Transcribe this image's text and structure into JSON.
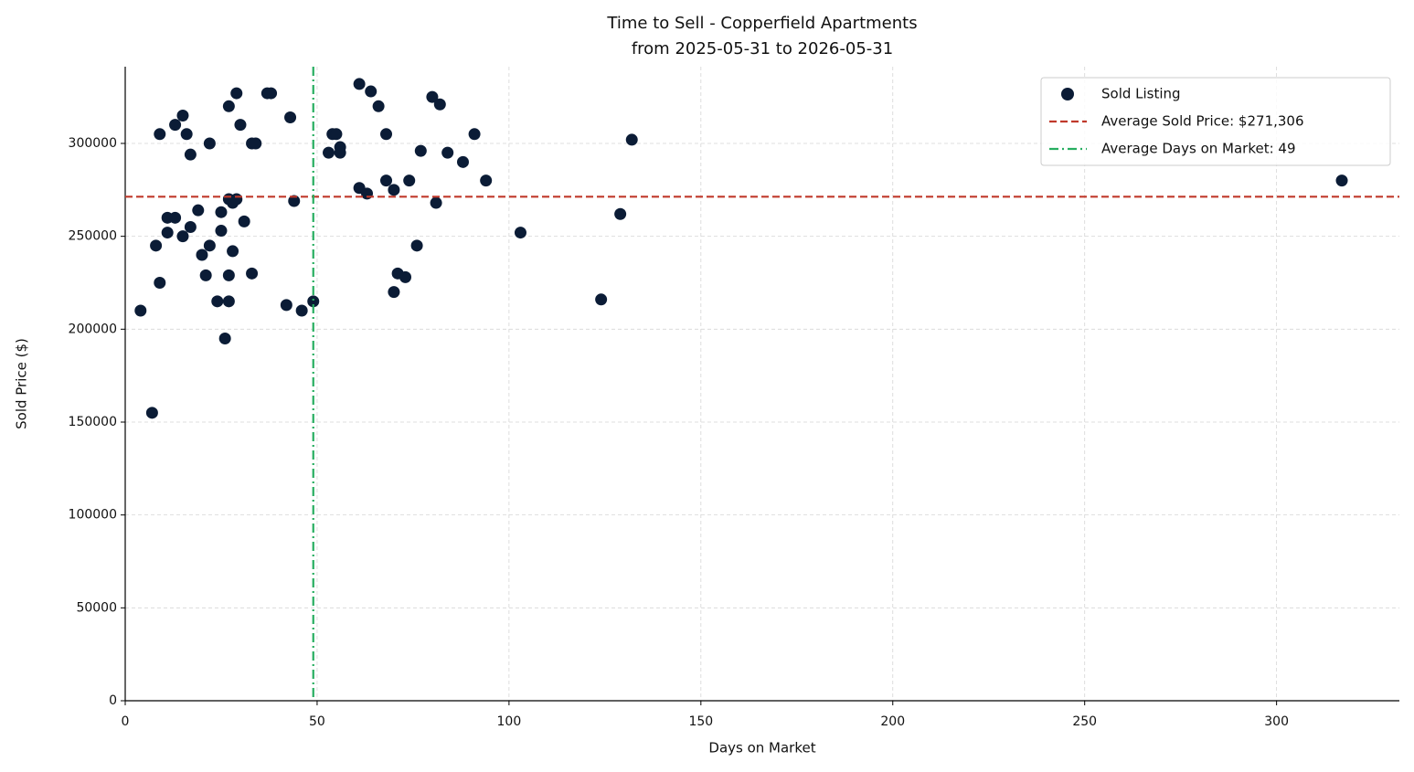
{
  "chart_data": {
    "type": "scatter",
    "title": "Time to Sell - Copperfield Apartments",
    "subtitle": "from 2025-05-31 to 2026-05-31",
    "x_label": "Days on Market",
    "y_label": "Sold Price ($)",
    "series": [
      {
        "name": "Sold Listing",
        "color": "#0b1c36",
        "x": [
          4,
          7,
          8,
          9,
          9,
          11,
          11,
          13,
          13,
          15,
          15,
          16,
          17,
          17,
          19,
          20,
          21,
          22,
          22,
          24,
          25,
          25,
          26,
          27,
          27,
          27,
          27,
          28,
          28,
          29,
          29,
          30,
          31,
          33,
          33,
          34,
          37,
          38,
          42,
          43,
          44,
          46,
          49,
          53,
          54,
          55,
          56,
          56,
          61,
          61,
          63,
          64,
          66,
          68,
          68,
          70,
          70,
          71,
          73,
          74,
          76,
          77,
          80,
          81,
          82,
          84,
          88,
          91,
          94,
          103,
          124,
          129,
          132,
          317
        ],
        "values": [
          210000,
          155000,
          245000,
          225000,
          305000,
          260000,
          252000,
          310000,
          260000,
          315000,
          250000,
          305000,
          294000,
          255000,
          264000,
          240000,
          229000,
          300000,
          245000,
          215000,
          263000,
          253000,
          195000,
          320000,
          270000,
          229000,
          215000,
          268000,
          242000,
          327000,
          270000,
          310000,
          258000,
          300000,
          230000,
          300000,
          327000,
          327000,
          213000,
          314000,
          269000,
          210000,
          215000,
          295000,
          305000,
          305000,
          298000,
          295000,
          332000,
          276000,
          273000,
          328000,
          320000,
          305000,
          280000,
          275000,
          220000,
          230000,
          228000,
          280000,
          245000,
          296000,
          325000,
          268000,
          321000,
          295000,
          290000,
          305000,
          280000,
          252000,
          216000,
          262000,
          302000,
          280000
        ]
      }
    ],
    "reference_lines": [
      {
        "name": "Average Sold Price: $271,306",
        "axis": "y",
        "value": 271306,
        "color": "#c0392b",
        "dash": "dashed"
      },
      {
        "name": "Average Days on Market: 49",
        "axis": "x",
        "value": 49,
        "color": "#27ae60",
        "dash": "dashdot"
      }
    ],
    "xlim": [
      0,
      332
    ],
    "ylim": [
      0,
      341300
    ],
    "xticks": [
      0,
      50,
      100,
      150,
      200,
      250,
      300
    ],
    "yticks": [
      0,
      50000,
      100000,
      150000,
      200000,
      250000,
      300000
    ],
    "grid": true,
    "legend": "upper right"
  }
}
